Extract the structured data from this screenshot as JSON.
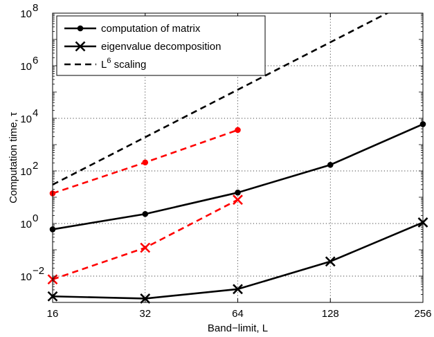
{
  "chart_data": {
    "type": "line",
    "xlabel": "Band−limit, L",
    "ylabel": "Computation time, τ",
    "x_scale": "log2",
    "y_scale": "log10",
    "xlim": [
      16,
      256
    ],
    "ylim": [
      0.001,
      100000000
    ],
    "x_ticks": [
      16,
      32,
      64,
      128,
      256
    ],
    "x_tick_labels": [
      "16",
      "32",
      "64",
      "128",
      "256"
    ],
    "y_ticks": [
      0.01,
      1,
      100,
      10000,
      1000000,
      100000000
    ],
    "y_tick_bases": [
      "10",
      "10",
      "10",
      "10",
      "10",
      "10"
    ],
    "y_tick_exponents": [
      "−2",
      "0",
      "2",
      "4",
      "6",
      "8"
    ],
    "grid": true,
    "legend_position": "top-left",
    "legend": [
      {
        "label": "computation of matrix",
        "color": "#000000",
        "dash": "solid",
        "marker": "dot"
      },
      {
        "label": "eigenvalue decomposition",
        "color": "#000000",
        "dash": "solid",
        "marker": "x"
      },
      {
        "label": "L",
        "superscript": "6",
        "suffix": " scaling",
        "color": "#000000",
        "dash": "dashed",
        "marker": "none"
      }
    ],
    "series": [
      {
        "color": "#000000",
        "dash": "solid",
        "marker": "dot",
        "x": [
          16,
          32,
          64,
          128,
          256
        ],
        "y": [
          0.6,
          2.3,
          15,
          170,
          6000
        ]
      },
      {
        "color": "#000000",
        "dash": "solid",
        "marker": "x",
        "x": [
          16,
          32,
          64,
          128,
          256
        ],
        "y": [
          0.0017,
          0.0014,
          0.0032,
          0.036,
          1.1
        ]
      },
      {
        "color": "#000000",
        "dash": "dashed",
        "marker": "none",
        "x": [
          16,
          256
        ],
        "y": [
          30,
          500000000
        ]
      },
      {
        "color": "#ff0000",
        "dash": "dashed",
        "marker": "dot",
        "x": [
          16,
          32,
          64
        ],
        "y": [
          14,
          210,
          3600
        ]
      },
      {
        "color": "#ff0000",
        "dash": "dashed",
        "marker": "x",
        "x": [
          16,
          32,
          64
        ],
        "y": [
          0.0075,
          0.12,
          8
        ]
      }
    ]
  }
}
